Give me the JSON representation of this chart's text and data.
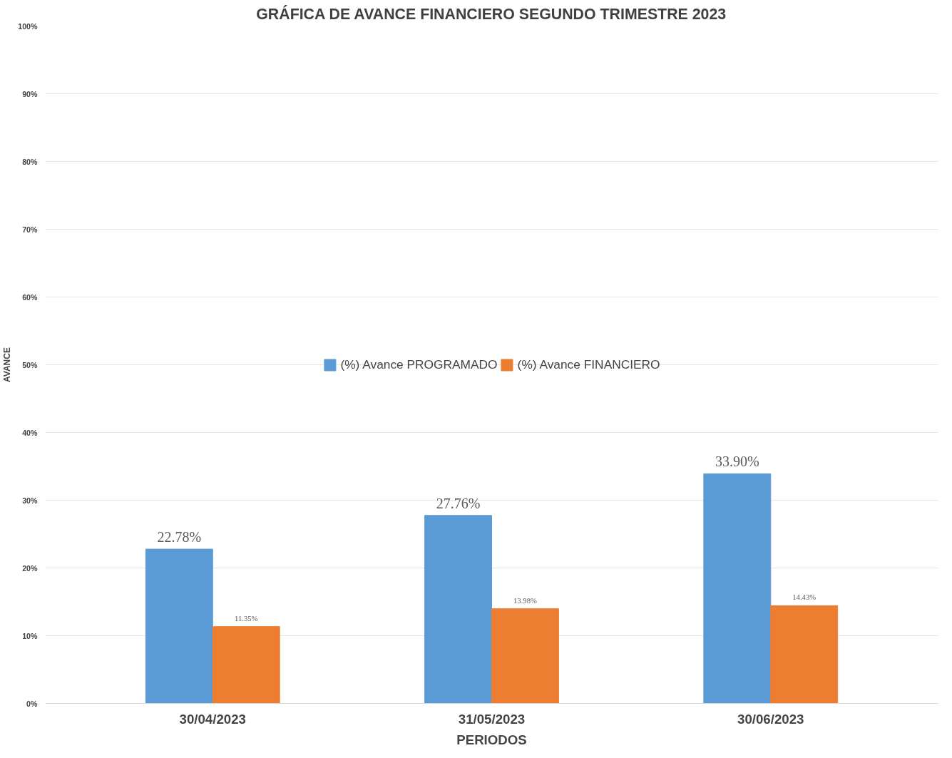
{
  "chart_data": {
    "type": "bar",
    "title": "GRÁFICA DE AVANCE FINANCIERO SEGUNDO TRIMESTRE 2023",
    "xlabel": "PERIODOS",
    "ylabel": "AVANCE",
    "categories": [
      "30/04/2023",
      "31/05/2023",
      "30/06/2023"
    ],
    "series": [
      {
        "name": "(%) Avance PROGRAMADO",
        "color": "#5b9bd5",
        "values": [
          22.78,
          27.76,
          33.9
        ],
        "value_labels": [
          "22.78%",
          "27.76%",
          "33.90%"
        ]
      },
      {
        "name": "(%) Avance FINANCIERO",
        "color": "#ed7d31",
        "values": [
          11.35,
          13.98,
          14.43
        ],
        "value_labels": [
          "11.35%",
          "13.98%",
          "14.43%"
        ]
      }
    ],
    "ylim": [
      0,
      100
    ],
    "yticks": [
      {
        "value": 0,
        "label": "0%"
      },
      {
        "value": 10,
        "label": "10%"
      },
      {
        "value": 20,
        "label": "20%"
      },
      {
        "value": 30,
        "label": "30%"
      },
      {
        "value": 40,
        "label": "40%"
      },
      {
        "value": 50,
        "label": "50%"
      },
      {
        "value": 60,
        "label": "60%"
      },
      {
        "value": 70,
        "label": "70%"
      },
      {
        "value": 80,
        "label": "80%"
      },
      {
        "value": 90,
        "label": "90%"
      },
      {
        "value": 100,
        "label": "100%"
      }
    ],
    "grid": "y",
    "legend": "center"
  }
}
